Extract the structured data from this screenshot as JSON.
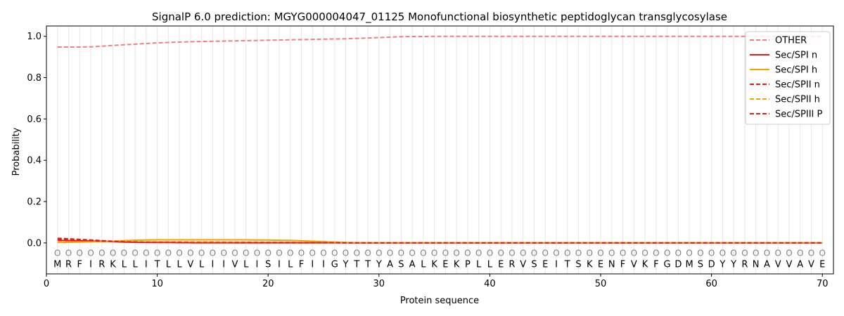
{
  "chart_data": {
    "type": "line",
    "title": "SignalP 6.0 prediction: MGYG000004047_01125 Monofunctional biosynthetic peptidoglycan transglycosylase",
    "xlabel": "Protein sequence",
    "ylabel": "Probability",
    "xlim": [
      0,
      71
    ],
    "ylim": [
      -0.15,
      1.05
    ],
    "xticks": [
      0,
      10,
      20,
      30,
      40,
      50,
      60,
      70
    ],
    "yticks": [
      0.0,
      0.2,
      0.4,
      0.6,
      0.8,
      1.0
    ],
    "sequence": [
      "M",
      "R",
      "F",
      "I",
      "R",
      "K",
      "L",
      "L",
      "I",
      "T",
      "L",
      "L",
      "V",
      "L",
      "I",
      "I",
      "V",
      "L",
      "I",
      "S",
      "I",
      "L",
      "F",
      "I",
      "I",
      "G",
      "Y",
      "T",
      "T",
      "Y",
      "A",
      "S",
      "A",
      "L",
      "K",
      "E",
      "K",
      "P",
      "L",
      "L",
      "E",
      "R",
      "V",
      "S",
      "E",
      "I",
      "T",
      "S",
      "K",
      "E",
      "N",
      "F",
      "V",
      "K",
      "F",
      "G",
      "D",
      "M",
      "S",
      "D",
      "Y",
      "Y",
      "R",
      "N",
      "A",
      "V",
      "V",
      "A",
      "V",
      "E"
    ],
    "region_labels": [
      "O",
      "O",
      "O",
      "O",
      "O",
      "O",
      "O",
      "O",
      "O",
      "O",
      "O",
      "O",
      "O",
      "O",
      "O",
      "O",
      "O",
      "O",
      "O",
      "O",
      "O",
      "O",
      "O",
      "O",
      "O",
      "O",
      "O",
      "O",
      "O",
      "O",
      "O",
      "O",
      "O",
      "O",
      "O",
      "O",
      "O",
      "O",
      "O",
      "O",
      "O",
      "O",
      "O",
      "O",
      "O",
      "O",
      "O",
      "O",
      "O",
      "O",
      "O",
      "O",
      "O",
      "O",
      "O",
      "O",
      "O",
      "O",
      "O",
      "O",
      "O",
      "O",
      "O",
      "O",
      "O",
      "O",
      "O",
      "O",
      "O",
      "O"
    ],
    "legend_position": "top-right",
    "series": [
      {
        "name": "OTHER",
        "color": "#f08080",
        "dash": "dashed",
        "values": [
          0.948,
          0.948,
          0.948,
          0.949,
          0.952,
          0.956,
          0.959,
          0.962,
          0.965,
          0.968,
          0.97,
          0.972,
          0.974,
          0.975,
          0.976,
          0.977,
          0.978,
          0.979,
          0.98,
          0.981,
          0.982,
          0.983,
          0.984,
          0.985,
          0.986,
          0.987,
          0.988,
          0.99,
          0.992,
          0.994,
          0.996,
          0.998,
          0.999,
          0.999,
          1.0,
          1.0,
          1.0,
          1.0,
          1.0,
          1.0,
          1.0,
          1.0,
          1.0,
          1.0,
          1.0,
          1.0,
          1.0,
          1.0,
          1.0,
          1.0,
          1.0,
          1.0,
          1.0,
          1.0,
          1.0,
          1.0,
          1.0,
          1.0,
          1.0,
          1.0,
          1.0,
          1.0,
          1.0,
          1.0,
          1.0,
          1.0,
          1.0,
          1.0,
          1.0,
          1.0
        ]
      },
      {
        "name": "Sec/SPI n",
        "color": "#e41a1c",
        "dash": "solid",
        "values": [
          0.012,
          0.011,
          0.01,
          0.009,
          0.008,
          0.006,
          0.004,
          0.003,
          0.002,
          0.002,
          0.002,
          0.001,
          0.001,
          0.001,
          0.001,
          0.001,
          0.001,
          0.001,
          0.001,
          0.001,
          0.001,
          0.001,
          0.001,
          0.001,
          0.001,
          0.001,
          0.001,
          0,
          0,
          0,
          0,
          0,
          0,
          0,
          0,
          0,
          0,
          0,
          0,
          0,
          0,
          0,
          0,
          0,
          0,
          0,
          0,
          0,
          0,
          0,
          0,
          0,
          0,
          0,
          0,
          0,
          0,
          0,
          0,
          0,
          0,
          0,
          0,
          0,
          0,
          0,
          0,
          0,
          0,
          0
        ]
      },
      {
        "name": "Sec/SPI h",
        "color": "#f0a500",
        "dash": "solid",
        "values": [
          0.002,
          0.003,
          0.004,
          0.005,
          0.006,
          0.008,
          0.011,
          0.013,
          0.014,
          0.015,
          0.015,
          0.015,
          0.015,
          0.015,
          0.015,
          0.015,
          0.015,
          0.015,
          0.014,
          0.014,
          0.013,
          0.012,
          0.01,
          0.008,
          0.006,
          0.004,
          0.002,
          0.001,
          0,
          0,
          0,
          0,
          0,
          0,
          0,
          0,
          0,
          0,
          0,
          0,
          0,
          0,
          0,
          0,
          0,
          0,
          0,
          0,
          0,
          0,
          0,
          0,
          0,
          0,
          0,
          0,
          0,
          0,
          0,
          0,
          0,
          0,
          0,
          0,
          0,
          0,
          0,
          0,
          0,
          0
        ]
      },
      {
        "name": "Sec/SPII n",
        "color": "#e41a1c",
        "dash": "dashed",
        "values": [
          0.022,
          0.02,
          0.017,
          0.014,
          0.011,
          0.008,
          0.005,
          0.004,
          0.003,
          0.003,
          0.002,
          0.002,
          0.002,
          0.002,
          0.002,
          0.002,
          0.001,
          0.001,
          0.001,
          0.001,
          0.001,
          0.001,
          0.001,
          0.001,
          0.001,
          0.001,
          0.001,
          0,
          0,
          0,
          0,
          0,
          0,
          0,
          0,
          0,
          0,
          0,
          0,
          0,
          0,
          0,
          0,
          0,
          0,
          0,
          0,
          0,
          0,
          0,
          0,
          0,
          0,
          0,
          0,
          0,
          0,
          0,
          0,
          0,
          0,
          0,
          0,
          0,
          0,
          0,
          0,
          0,
          0,
          0
        ]
      },
      {
        "name": "Sec/SPII h",
        "color": "#f0a500",
        "dash": "dashed",
        "values": [
          0.003,
          0.004,
          0.005,
          0.006,
          0.006,
          0.006,
          0.006,
          0.006,
          0.005,
          0.005,
          0.005,
          0.005,
          0.005,
          0.005,
          0.005,
          0.004,
          0.004,
          0.004,
          0.004,
          0.003,
          0.003,
          0.003,
          0.002,
          0.002,
          0.002,
          0.001,
          0.001,
          0,
          0,
          0,
          0,
          0,
          0,
          0,
          0,
          0,
          0,
          0,
          0,
          0,
          0,
          0,
          0,
          0,
          0,
          0,
          0,
          0,
          0,
          0,
          0,
          0,
          0,
          0,
          0,
          0,
          0,
          0,
          0,
          0,
          0,
          0,
          0,
          0,
          0,
          0,
          0,
          0,
          0,
          0
        ]
      },
      {
        "name": "Sec/SPIII P",
        "color": "#e41a1c",
        "dash": "dashed",
        "values": [
          0.016,
          0.015,
          0.013,
          0.011,
          0.009,
          0.007,
          0.005,
          0.004,
          0.003,
          0.002,
          0.002,
          0.002,
          0.001,
          0.001,
          0.001,
          0.001,
          0.001,
          0.001,
          0.001,
          0.001,
          0.001,
          0.001,
          0.001,
          0.001,
          0.001,
          0.001,
          0,
          0,
          0,
          0,
          0,
          0,
          0,
          0,
          0,
          0,
          0,
          0,
          0,
          0,
          0,
          0,
          0,
          0,
          0,
          0,
          0,
          0,
          0,
          0,
          0,
          0,
          0,
          0,
          0,
          0,
          0,
          0,
          0,
          0,
          0,
          0,
          0,
          0,
          0,
          0,
          0,
          0,
          0,
          0
        ]
      }
    ]
  }
}
